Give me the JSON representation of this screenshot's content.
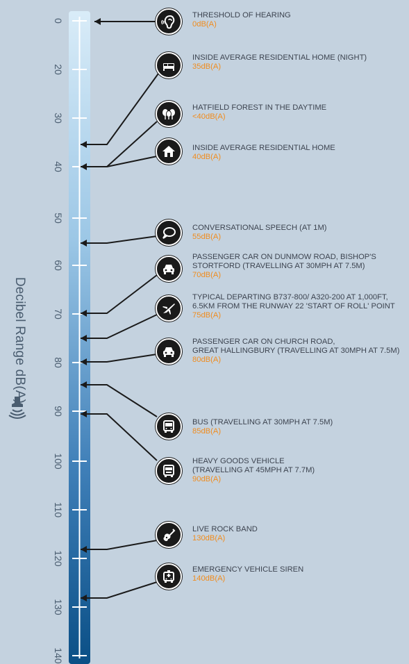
{
  "axis": {
    "title": "Decibel Range dB(A)",
    "ticks": [
      "0",
      "20",
      "30",
      "40",
      "50",
      "60",
      "70",
      "80",
      "90",
      "100",
      "110",
      "120",
      "130",
      "140"
    ]
  },
  "entries": [
    {
      "label": "THRESHOLD OF HEARING",
      "value": "0dB(A)",
      "icon": "ear-icon"
    },
    {
      "label": "INSIDE AVERAGE RESIDENTIAL HOME (NIGHT)",
      "value": "35dB(A)",
      "icon": "bed-icon"
    },
    {
      "label": "HATFIELD FOREST IN THE DAYTIME",
      "value": "<40dB(A)",
      "icon": "trees-icon"
    },
    {
      "label": "INSIDE AVERAGE RESIDENTIAL HOME",
      "value": "40dB(A)",
      "icon": "house-icon"
    },
    {
      "label": "CONVERSATIONAL SPEECH (AT 1m)",
      "value": "55dB(A)",
      "icon": "speech-bubble-icon"
    },
    {
      "label": "PASSENGER CAR ON DUNMOW ROAD, BISHOP'S\nSTORTFORD (TRAVELLING AT 30MPH AT 7.5m)",
      "value": "70dB(A)",
      "icon": "car-icon"
    },
    {
      "label": "TYPICAL DEPARTING B737-800/ A320-200 AT 1,000ft,\n6.5km FROM THE RUNWAY 22 'START OF ROLL' POINT",
      "value": "75dB(A)",
      "icon": "airplane-icon"
    },
    {
      "label": "PASSENGER CAR ON CHURCH ROAD,\nGREAT HALLINGBURY (TRAVELLING AT 30MPH AT 7.5m)",
      "value": "80dB(A)",
      "icon": "car-icon"
    },
    {
      "label": "BUS (TRAVELLING AT 30MPH AT 7.5m)",
      "value": "85dB(A)",
      "icon": "bus-icon"
    },
    {
      "label": "HEAVY GOODS VEHICLE\n(TRAVELLING AT 45MPH AT 7.7m)",
      "value": "90dB(A)",
      "icon": "truck-icon"
    },
    {
      "label": "LIVE ROCK BAND",
      "value": "130dB(A)",
      "icon": "guitar-icon"
    },
    {
      "label": "EMERGENCY VEHICLE SIREN",
      "value": "140dB(A)",
      "icon": "emergency-vehicle-icon"
    }
  ],
  "colors": {
    "background": "#c4d2df",
    "value_accent": "#f08c1e",
    "scale_top": "#d9ecf8",
    "scale_bottom": "#0a4f86",
    "icon_fill": "#1a1a1a"
  }
}
